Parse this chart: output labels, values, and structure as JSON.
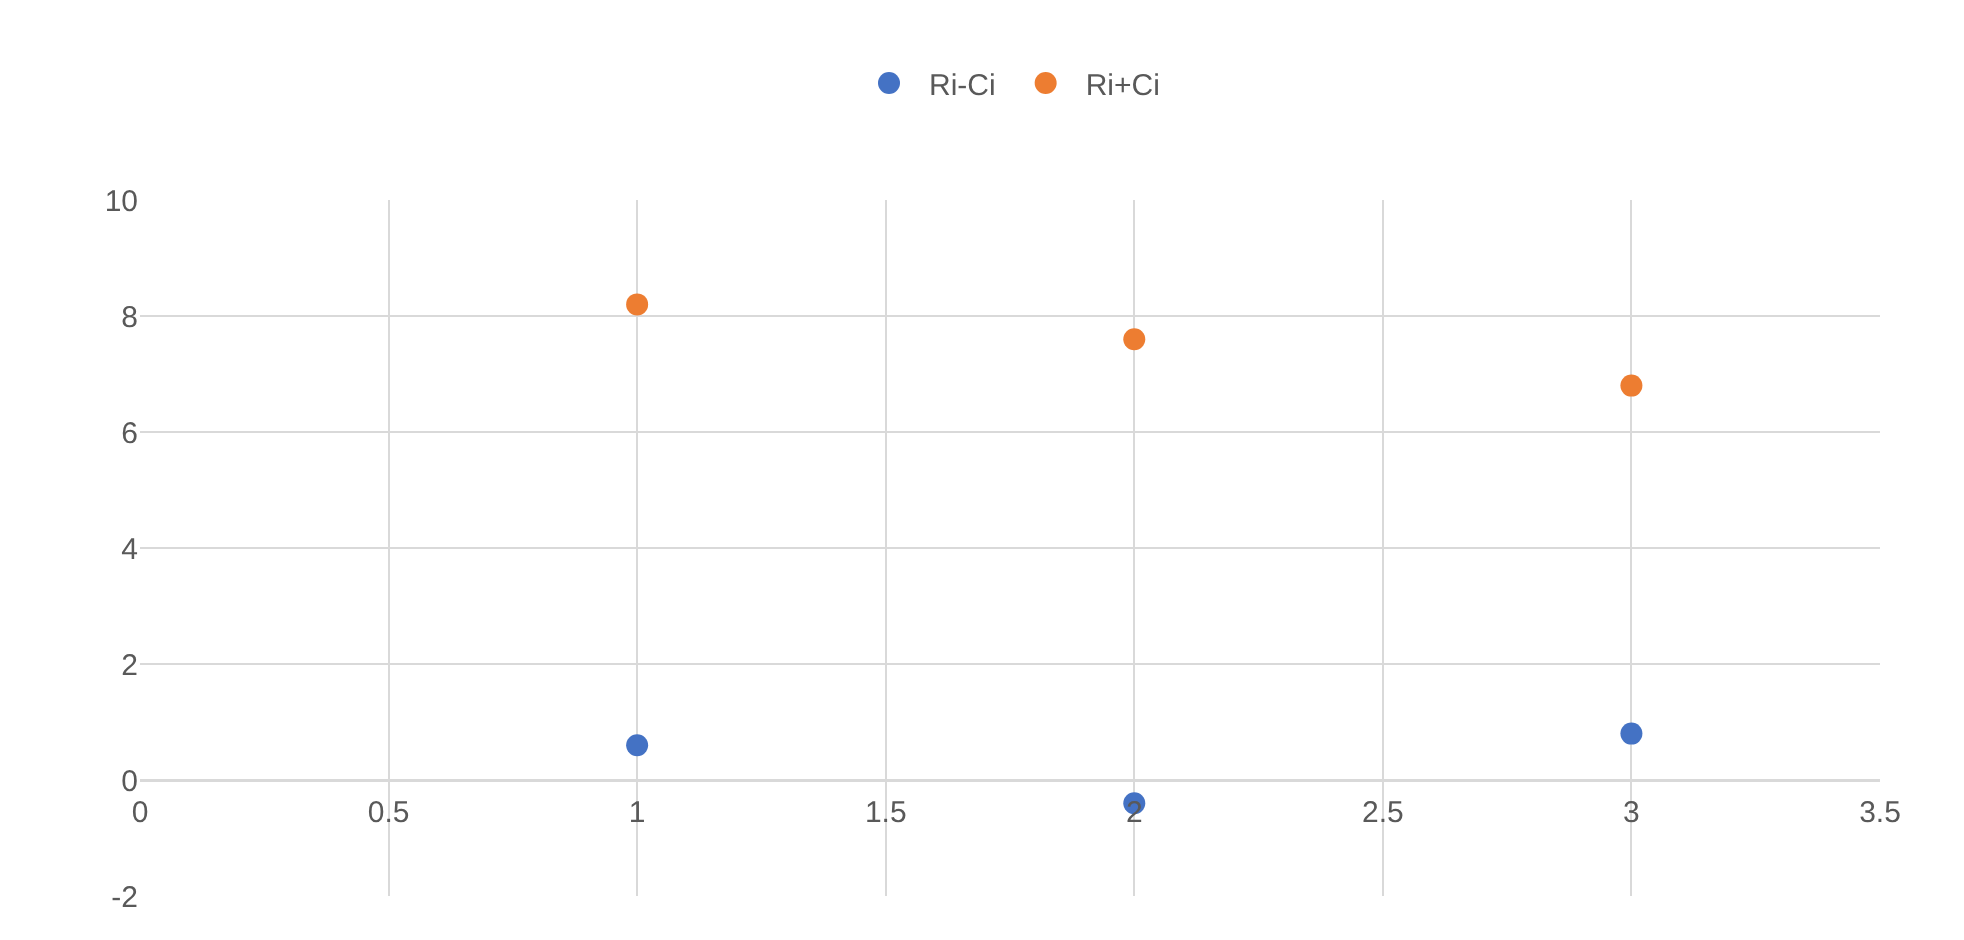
{
  "chart_data": {
    "type": "scatter",
    "x": [
      1,
      2,
      3
    ],
    "series": [
      {
        "name": "Ri-Ci",
        "color": "#4472c4",
        "values": [
          0.6,
          -0.4,
          0.8
        ]
      },
      {
        "name": "Ri+Ci",
        "color": "#ed7d31",
        "values": [
          8.2,
          7.6,
          6.8
        ]
      }
    ],
    "xlim": [
      0,
      3.5
    ],
    "xticks": [
      0,
      0.5,
      1,
      1.5,
      2,
      2.5,
      3,
      3.5
    ],
    "ylim": [
      -2,
      10
    ],
    "yticks": [
      -2,
      0,
      2,
      4,
      6,
      8,
      10
    ],
    "grid": true,
    "legend": "top",
    "marker": "circle"
  }
}
